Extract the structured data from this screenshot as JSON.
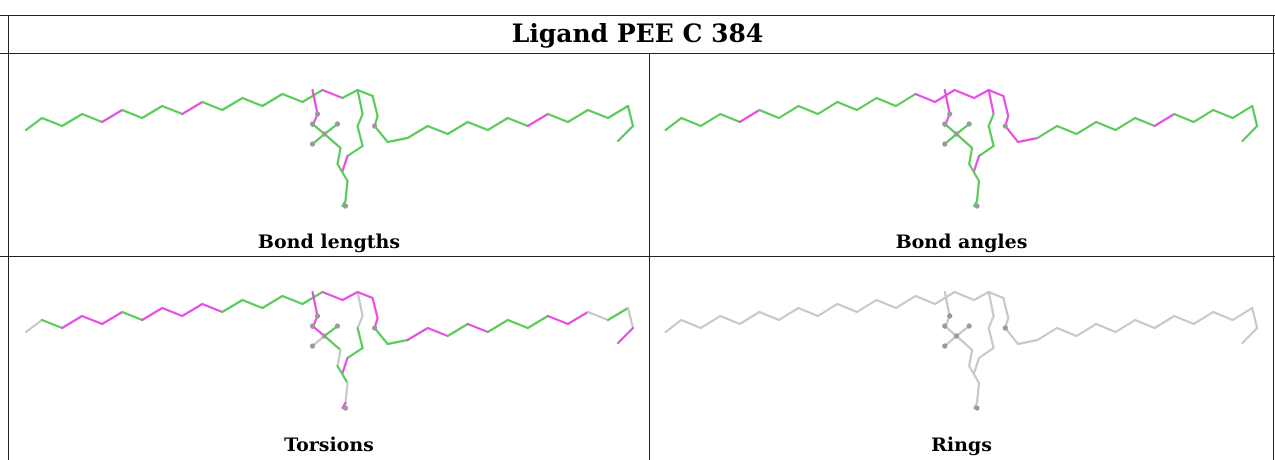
{
  "title": "Ligand PEE C 384",
  "panels": [
    {
      "caption": "Bond lengths",
      "colors": [
        "green",
        "green",
        "green",
        "green",
        "magenta",
        "green",
        "green",
        "green",
        "magenta",
        "green",
        "green",
        "green",
        "green",
        "green",
        "green",
        "magenta",
        "green",
        "green",
        "green",
        "green",
        "green",
        "magenta",
        "magenta",
        "magenta",
        "green",
        "green",
        "green",
        "green",
        "green",
        "green",
        "green",
        "green",
        "green",
        "green",
        "green",
        "magenta",
        "green",
        "green",
        "green",
        "green",
        "green",
        "green",
        "green",
        "green",
        "green",
        "green",
        "green",
        "green",
        "green",
        "green",
        "green"
      ]
    },
    {
      "caption": "Bond angles",
      "colors": [
        "green",
        "green",
        "green",
        "green",
        "magenta",
        "green",
        "green",
        "green",
        "green",
        "green",
        "green",
        "green",
        "green",
        "magenta",
        "magenta",
        "magenta",
        "magenta",
        "magenta",
        "green",
        "green",
        "green",
        "magenta",
        "magenta",
        "magenta",
        "magenta",
        "magenta",
        "magenta",
        "magenta",
        "magenta",
        "green",
        "green",
        "green",
        "green",
        "green",
        "green",
        "magenta",
        "green",
        "green",
        "green",
        "green",
        "green",
        "green",
        "green",
        "green",
        "green",
        "green",
        "green",
        "green",
        "green",
        "green",
        "green"
      ]
    },
    {
      "caption": "Torsions",
      "colors": [
        "gray",
        "green",
        "magenta",
        "magenta",
        "magenta",
        "green",
        "magenta",
        "magenta",
        "magenta",
        "magenta",
        "green",
        "green",
        "green",
        "green",
        "green",
        "magenta",
        "magenta",
        "gray",
        "gray",
        "green",
        "green",
        "magenta",
        "magenta",
        "magenta",
        "magenta",
        "magenta",
        "magenta",
        "green",
        "green",
        "magenta",
        "magenta",
        "green",
        "magenta",
        "green",
        "green",
        "green",
        "magenta",
        "magenta",
        "gray",
        "green",
        "gray",
        "magenta",
        "magenta",
        "gray",
        "green",
        "green",
        "gray",
        "green",
        "gray",
        "magenta",
        "green"
      ]
    },
    {
      "caption": "Rings",
      "colors": [
        "gray",
        "gray",
        "gray",
        "gray",
        "gray",
        "gray",
        "gray",
        "gray",
        "gray",
        "gray",
        "gray",
        "gray",
        "gray",
        "gray",
        "gray",
        "gray",
        "gray",
        "gray",
        "gray",
        "gray",
        "gray",
        "gray",
        "gray",
        "gray",
        "gray",
        "gray",
        "gray",
        "gray",
        "gray",
        "gray",
        "gray",
        "gray",
        "gray",
        "gray",
        "gray",
        "gray",
        "gray",
        "gray",
        "gray",
        "gray",
        "gray",
        "gray",
        "gray",
        "gray",
        "gray",
        "gray",
        "gray",
        "gray",
        "gray",
        "gray",
        "gray"
      ]
    }
  ]
}
